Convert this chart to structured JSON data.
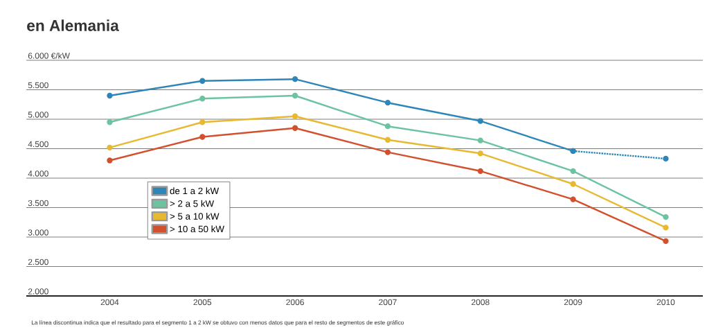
{
  "chart_data": {
    "type": "line",
    "title": "en Alemania",
    "categories": [
      "2004",
      "2005",
      "2006",
      "2007",
      "2008",
      "2009",
      "2010"
    ],
    "series": [
      {
        "name": "de 1 a 2 kW",
        "color": "#2e86b8",
        "values": [
          5400,
          5650,
          5680,
          5280,
          4970,
          4460,
          null
        ]
      },
      {
        "color": "#2e86b8",
        "line_style": "dotted",
        "values": [
          null,
          null,
          null,
          null,
          null,
          4460,
          4330
        ]
      },
      {
        "name": "> 2 a 5 kW",
        "color": "#6cc3a0",
        "values": [
          4950,
          5350,
          5400,
          4880,
          4640,
          4120,
          3340
        ]
      },
      {
        "name": "> 5 a 10 kW",
        "color": "#e8b830",
        "values": [
          4520,
          4950,
          5050,
          4650,
          4420,
          3900,
          3160
        ]
      },
      {
        "name": "> 10 a 50 kW",
        "color": "#d2502e",
        "values": [
          4300,
          4700,
          4850,
          4440,
          4120,
          3640,
          2930
        ]
      }
    ],
    "ylim": [
      2000,
      6000
    ],
    "yticks": [
      {
        "value": 2000,
        "label": "2.000"
      },
      {
        "value": 2500,
        "label": "2.500"
      },
      {
        "value": 3000,
        "label": "3.000"
      },
      {
        "value": 3500,
        "label": "3.500"
      },
      {
        "value": 4000,
        "label": "4.000"
      },
      {
        "value": 4500,
        "label": "4.500"
      },
      {
        "value": 5000,
        "label": "5.000"
      },
      {
        "value": 5500,
        "label": "5.500"
      },
      {
        "value": 6000,
        "label": "6.000 €/kW"
      }
    ],
    "grid": "y",
    "legend": "left",
    "marker": "circle",
    "annotations": [
      "La línea discontinua indica que el resultado para el segmento 1 a 2 kW se obtuvo con menos datos que para el resto de segmentos de este gráfico"
    ]
  }
}
